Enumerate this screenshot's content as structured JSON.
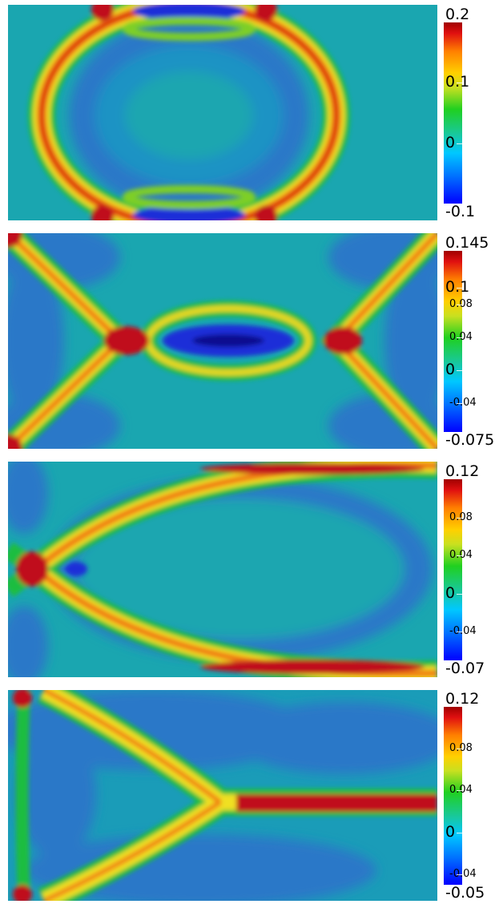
{
  "chart_data": [
    {
      "type": "heatmap",
      "frame": 1,
      "colormap": "jet",
      "colorbar": {
        "min": -0.1,
        "max": 0.2,
        "labels": [
          {
            "text": "0.2",
            "value": 0.2
          },
          {
            "text": "0.1",
            "value": 0.1
          },
          {
            "text": "0",
            "value": 0
          },
          {
            "text": "-0.1",
            "value": -0.1
          }
        ]
      },
      "field_description": "ring-shaped wavefront (circle) with low-value core",
      "colors": {
        "bg": "#1aa6b0"
      }
    },
    {
      "type": "heatmap",
      "frame": 2,
      "colormap": "jet",
      "colorbar": {
        "min": -0.075,
        "max": 0.145,
        "labels": [
          {
            "text": "0.145",
            "value": 0.145
          },
          {
            "text": "0.1",
            "value": 0.1
          },
          {
            "text": "0.08",
            "value": 0.08
          },
          {
            "text": "0.04",
            "value": 0.04
          },
          {
            "text": "0",
            "value": 0
          },
          {
            "text": "-0.04",
            "value": -0.04
          },
          {
            "text": "-0.075",
            "value": -0.075
          }
        ]
      },
      "field_description": "X-shaped crossing fronts with central lens",
      "colors": {
        "bg": "#1aa6b0"
      }
    },
    {
      "type": "heatmap",
      "frame": 3,
      "colormap": "jet",
      "colorbar": {
        "min": -0.07,
        "max": 0.12,
        "labels": [
          {
            "text": "0.12",
            "value": 0.12
          },
          {
            "text": "0.08",
            "value": 0.08
          },
          {
            "text": "0.04",
            "value": 0.04
          },
          {
            "text": "0",
            "value": 0
          },
          {
            "text": "-0.04",
            "value": -0.04
          },
          {
            "text": "-0.07",
            "value": -0.07
          }
        ]
      },
      "field_description": "elliptical front emanating from left edge",
      "colors": {
        "bg": "#1aa6b0"
      }
    },
    {
      "type": "heatmap",
      "frame": 4,
      "colormap": "jet",
      "colorbar": {
        "min": -0.05,
        "max": 0.12,
        "labels": [
          {
            "text": "0.12",
            "value": 0.12
          },
          {
            "text": "0.08",
            "value": 0.08
          },
          {
            "text": "0.04",
            "value": 0.04
          },
          {
            "text": "0",
            "value": 0
          },
          {
            "text": "-0.04",
            "value": -0.04
          },
          {
            "text": "-0.05",
            "value": -0.05
          }
        ]
      },
      "field_description": "Y-shaped junction with horizontal ridge to right",
      "colors": {
        "bg": "#1aa6b0"
      }
    }
  ]
}
